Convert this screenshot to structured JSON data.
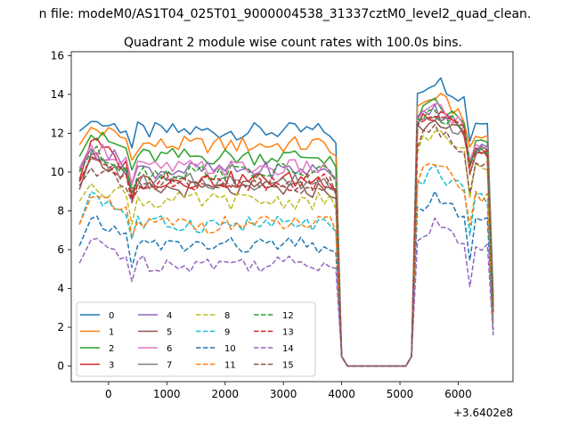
{
  "chart_data": {
    "type": "line",
    "suptitle": "n file: modeM0/AS1T04_025T01_9000004538_31337cztM0_level2_quad_clean.",
    "title": "Quadrant 2 module wise count rates with 100.0s bins.",
    "offset_text": "+3.6402e8",
    "xlabel": "",
    "ylabel": "",
    "xlim": [
      -640,
      6940
    ],
    "ylim": [
      -0.8,
      16.2
    ],
    "xticks": [
      0,
      1000,
      2000,
      3000,
      4000,
      5000,
      6000
    ],
    "yticks": [
      0,
      2,
      4,
      6,
      8,
      10,
      12,
      14,
      16
    ],
    "xtick_labels": [
      "0",
      "1000",
      "2000",
      "3000",
      "4000",
      "5000",
      "6000"
    ],
    "ytick_labels": [
      "0",
      "2",
      "4",
      "6",
      "8",
      "10",
      "12",
      "14",
      "16"
    ],
    "grid": false,
    "legend": {
      "placement": "lower-left",
      "columns": 4
    },
    "x": {
      "start": -500,
      "step": 100,
      "count": 72
    },
    "series": [
      {
        "name": "0",
        "color": "#1f77b4",
        "dash": "solid",
        "level_a": 12.1,
        "level_b": 14.8,
        "knee": 12.6
      },
      {
        "name": "1",
        "color": "#ff7f0e",
        "dash": "solid",
        "level_a": 11.4,
        "level_b": 13.9,
        "knee": 12.3
      },
      {
        "name": "2",
        "color": "#2ca02c",
        "dash": "solid",
        "level_a": 10.8,
        "level_b": 13.5,
        "knee": 11.9
      },
      {
        "name": "3",
        "color": "#d62728",
        "dash": "solid",
        "level_a": 9.6,
        "level_b": 13.0,
        "knee": 11.6
      },
      {
        "name": "4",
        "color": "#9467bd",
        "dash": "solid",
        "level_a": 10.1,
        "level_b": 13.2,
        "knee": 11.2
      },
      {
        "name": "5",
        "color": "#8c564b",
        "dash": "solid",
        "level_a": 9.1,
        "level_b": 12.9,
        "knee": 10.9
      },
      {
        "name": "6",
        "color": "#e377c2",
        "dash": "solid",
        "level_a": 10.2,
        "level_b": 13.4,
        "knee": 11.4
      },
      {
        "name": "7",
        "color": "#7f7f7f",
        "dash": "solid",
        "level_a": 9.5,
        "level_b": 13.0,
        "knee": 10.7
      },
      {
        "name": "8",
        "color": "#bcbd22",
        "dash": "dashed",
        "level_a": 8.5,
        "level_b": 12.0,
        "knee": 9.4
      },
      {
        "name": "9",
        "color": "#17becf",
        "dash": "dashed",
        "level_a": 7.3,
        "level_b": 10.1,
        "knee": 9.0
      },
      {
        "name": "10",
        "color": "#1f77b4",
        "dash": "dashed",
        "level_a": 6.2,
        "level_b": 8.7,
        "knee": 7.6
      },
      {
        "name": "11",
        "color": "#ff7f0e",
        "dash": "dashed",
        "level_a": 7.3,
        "level_b": 10.3,
        "knee": 8.7
      },
      {
        "name": "12",
        "color": "#2ca02c",
        "dash": "dashed",
        "level_a": 10.0,
        "level_b": 13.1,
        "knee": 11.0
      },
      {
        "name": "13",
        "color": "#d62728",
        "dash": "dashed",
        "level_a": 9.5,
        "level_b": 13.1,
        "knee": 10.8
      },
      {
        "name": "14",
        "color": "#9467bd",
        "dash": "dashed",
        "level_a": 5.3,
        "level_b": 7.3,
        "knee": 6.5
      },
      {
        "name": "15",
        "color": "#8c564b",
        "dash": "dashed",
        "level_a": 9.3,
        "level_b": 12.2,
        "knee": 10.2
      }
    ]
  }
}
